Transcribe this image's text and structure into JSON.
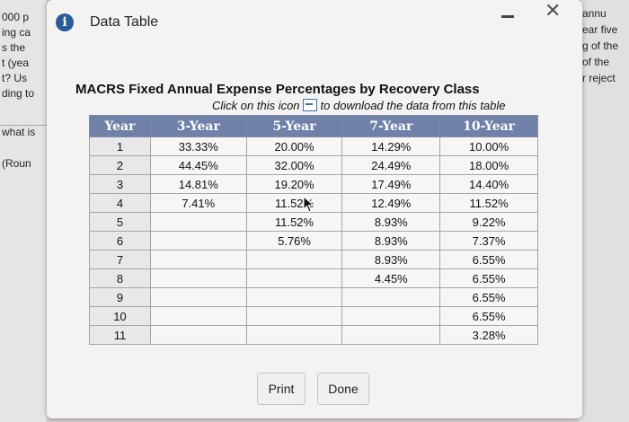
{
  "background": {
    "left_lines": [
      "000 p",
      "ing ca",
      "s the",
      "t (yea",
      "t? Us",
      "ding to",
      "what is",
      "(Roun"
    ],
    "right_lines": [
      "annu",
      "ear five",
      "g of the",
      "of the",
      "r reject"
    ]
  },
  "dialog": {
    "title": "Data Table",
    "table_title": "MACRS Fixed Annual Expense Percentages by Recovery Class",
    "subtitle_before": "Click on this icon",
    "subtitle_after": "to download the data from this table",
    "columns": [
      "Year",
      "3-Year",
      "5-Year",
      "7-Year",
      "10-Year"
    ],
    "rows": [
      [
        "1",
        "33.33%",
        "20.00%",
        "14.29%",
        "10.00%"
      ],
      [
        "2",
        "44.45%",
        "32.00%",
        "24.49%",
        "18.00%"
      ],
      [
        "3",
        "14.81%",
        "19.20%",
        "17.49%",
        "14.40%"
      ],
      [
        "4",
        "7.41%",
        "11.52%",
        "12.49%",
        "11.52%"
      ],
      [
        "5",
        "",
        "11.52%",
        "8.93%",
        "9.22%"
      ],
      [
        "6",
        "",
        "5.76%",
        "8.93%",
        "7.37%"
      ],
      [
        "7",
        "",
        "",
        "8.93%",
        "6.55%"
      ],
      [
        "8",
        "",
        "",
        "4.45%",
        "6.55%"
      ],
      [
        "9",
        "",
        "",
        "",
        "6.55%"
      ],
      [
        "10",
        "",
        "",
        "",
        "6.55%"
      ],
      [
        "11",
        "",
        "",
        "",
        "3.28%"
      ]
    ],
    "buttons": {
      "print": "Print",
      "done": "Done"
    }
  }
}
